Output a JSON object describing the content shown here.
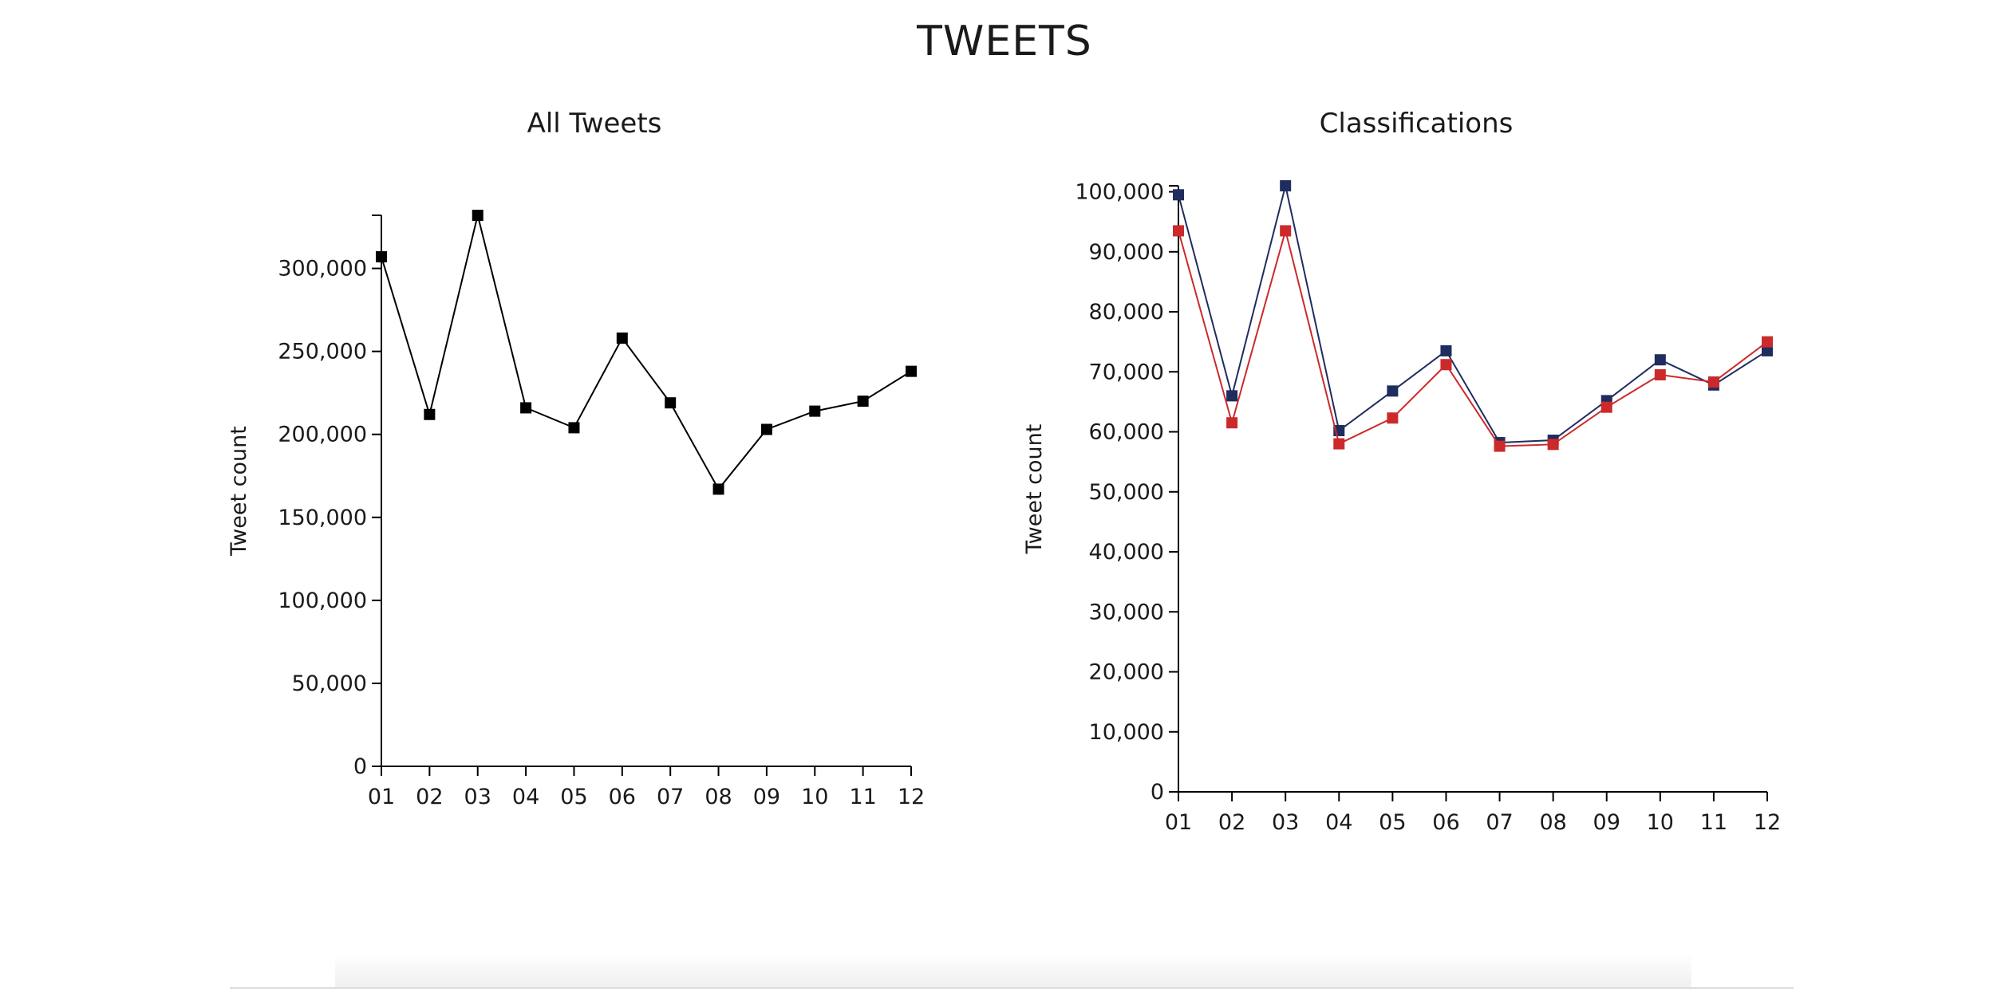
{
  "page": {
    "title": "TWEETS"
  },
  "chart_data": [
    {
      "type": "line",
      "title": "All Tweets",
      "xlabel": "",
      "ylabel": "Tweet count",
      "categories": [
        "01",
        "02",
        "03",
        "04",
        "05",
        "06",
        "07",
        "08",
        "09",
        "10",
        "11",
        "12"
      ],
      "ylim": [
        0,
        332000
      ],
      "yticks": [
        0,
        50000,
        100000,
        150000,
        200000,
        250000,
        300000
      ],
      "ytick_labels": [
        "0",
        "50,000",
        "100,000",
        "150,000",
        "200,000",
        "250,000",
        "300,000"
      ],
      "grid": false,
      "series": [
        {
          "color": "#000000",
          "values": [
            307000,
            212000,
            332000,
            216000,
            204000,
            258000,
            219000,
            167000,
            203000,
            214000,
            220000,
            238000
          ]
        }
      ]
    },
    {
      "type": "line",
      "title": "Classifications",
      "xlabel": "",
      "ylabel": "Tweet count",
      "categories": [
        "01",
        "02",
        "03",
        "04",
        "05",
        "06",
        "07",
        "08",
        "09",
        "10",
        "11",
        "12"
      ],
      "ylim": [
        0,
        101000
      ],
      "yticks": [
        0,
        10000,
        20000,
        30000,
        40000,
        50000,
        60000,
        70000,
        80000,
        90000,
        100000
      ],
      "ytick_labels": [
        "0",
        "10,000",
        "20,000",
        "30,000",
        "40,000",
        "50,000",
        "60,000",
        "70,000",
        "80,000",
        "90,000",
        "100,000"
      ],
      "grid": false,
      "series": [
        {
          "color": "#1f2d5e",
          "values": [
            99500,
            66000,
            101000,
            60200,
            66800,
            73500,
            58200,
            58600,
            65200,
            72000,
            67800,
            73500
          ]
        },
        {
          "color": "#cc2a2a",
          "values": [
            93500,
            61500,
            93500,
            58000,
            62300,
            71200,
            57600,
            57900,
            64100,
            69500,
            68300,
            75000
          ]
        }
      ]
    }
  ]
}
